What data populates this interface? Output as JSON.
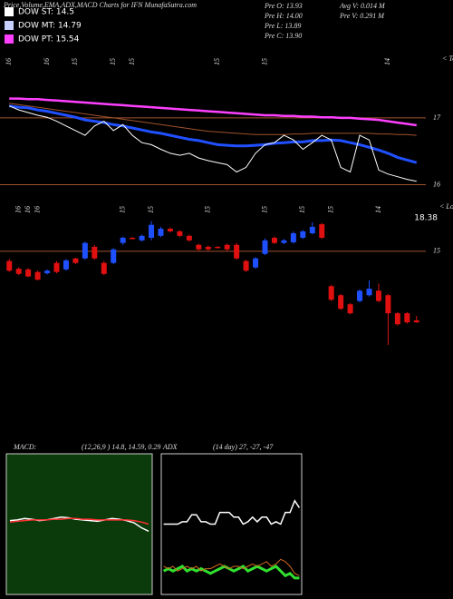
{
  "header": {
    "title": "Price,Volume,EMA,ADX,MACD Charts for IFN  MunafaSutra.com"
  },
  "legend": [
    {
      "label": "DOW ST: 14.5",
      "color": "#ffffff"
    },
    {
      "label": "DOW MT: 14.79",
      "color": "#c8d0ff"
    },
    {
      "label": "DOW PT: 15.54",
      "color": "#ff40ff"
    }
  ],
  "info": [
    "Pre  O: 13.93",
    "Pre  H: 14.00",
    "Pre  L: 13.89",
    "Pre  C: 13.90",
    "Avg V: 0.014  M",
    "Pre  V: 0.291  M"
  ],
  "chart_data": [
    {
      "type": "line",
      "categories": [
        "16",
        null,
        null,
        null,
        "16",
        null,
        null,
        "15",
        null,
        null,
        null,
        "15",
        null,
        "15",
        null,
        null,
        null,
        null,
        null,
        null,
        null,
        null,
        "15",
        null,
        null,
        null,
        null,
        "15",
        null,
        null,
        null,
        null,
        null,
        null,
        null,
        null,
        null,
        null,
        null,
        null,
        "14",
        null,
        null,
        null
      ],
      "series": [
        {
          "color": "#ff40ff",
          "width": 2.5,
          "values": [
            17.29,
            17.29,
            17.28,
            17.28,
            17.27,
            17.26,
            17.25,
            17.24,
            17.23,
            17.22,
            17.21,
            17.2,
            17.19,
            17.18,
            17.17,
            17.16,
            17.15,
            17.14,
            17.13,
            17.12,
            17.11,
            17.1,
            17.09,
            17.08,
            17.07,
            17.06,
            17.05,
            17.04,
            17.04,
            17.03,
            17.03,
            17.02,
            17.02,
            17.01,
            17.01,
            17.0,
            17.0,
            16.99,
            16.98,
            16.97,
            16.95,
            16.93,
            16.91,
            16.89
          ]
        },
        {
          "color": "#a0522d",
          "width": 1,
          "values": [
            17.22,
            17.2,
            17.18,
            17.16,
            17.14,
            17.12,
            17.1,
            17.08,
            17.06,
            17.04,
            17.02,
            17.0,
            16.98,
            16.96,
            16.94,
            16.92,
            16.9,
            16.88,
            16.86,
            16.84,
            16.82,
            16.8,
            16.79,
            16.78,
            16.77,
            16.76,
            16.75,
            16.75,
            16.75,
            16.75,
            16.76,
            16.76,
            16.77,
            16.77,
            16.77,
            16.77,
            16.77,
            16.77,
            16.77,
            16.76,
            16.76,
            16.75,
            16.75,
            16.74
          ]
        },
        {
          "color": "#2050ff",
          "width": 3,
          "values": [
            17.18,
            17.16,
            17.15,
            17.12,
            17.1,
            17.07,
            17.04,
            17.01,
            16.97,
            16.95,
            16.93,
            16.9,
            16.88,
            16.85,
            16.82,
            16.79,
            16.77,
            16.74,
            16.71,
            16.68,
            16.66,
            16.63,
            16.6,
            16.59,
            16.58,
            16.58,
            16.59,
            16.6,
            16.62,
            16.63,
            16.64,
            16.64,
            16.66,
            16.66,
            16.67,
            16.66,
            16.63,
            16.6,
            16.56,
            16.52,
            16.47,
            16.41,
            16.37,
            16.33
          ]
        },
        {
          "color": "#ffffff",
          "width": 1,
          "values": [
            17.18,
            17.12,
            17.08,
            17.04,
            17.01,
            16.95,
            16.88,
            16.81,
            16.74,
            16.88,
            16.95,
            16.81,
            16.9,
            16.74,
            16.63,
            16.6,
            16.53,
            16.47,
            16.44,
            16.47,
            16.4,
            16.36,
            16.33,
            16.3,
            16.19,
            16.26,
            16.47,
            16.6,
            16.63,
            16.74,
            16.67,
            16.53,
            16.63,
            16.74,
            16.67,
            16.26,
            16.19,
            16.74,
            16.67,
            16.22,
            16.16,
            16.12,
            16.08,
            16.05
          ]
        }
      ],
      "ylim": [
        15.98,
        17.95
      ],
      "yticks": [
        17,
        16
      ],
      "annotations": [
        "18.38",
        "< Topa"
      ]
    },
    {
      "type": "candlestick",
      "categories": [
        null,
        "16",
        "16",
        "16",
        null,
        null,
        null,
        null,
        null,
        null,
        null,
        null,
        "15",
        null,
        null,
        "15",
        null,
        null,
        null,
        null,
        null,
        "15",
        null,
        null,
        null,
        null,
        null,
        "15",
        null,
        null,
        null,
        "15",
        null,
        null,
        "15",
        null,
        null,
        null,
        null,
        "14",
        null,
        null,
        null,
        null
      ],
      "open": [
        14.85,
        14.73,
        14.72,
        14.68,
        14.66,
        14.82,
        14.72,
        14.89,
        14.89,
        15.07,
        14.82,
        14.82,
        15.13,
        15.21,
        15.17,
        15.21,
        15.24,
        15.35,
        15.31,
        15.24,
        15.1,
        15.07,
        15.07,
        15.1,
        15.1,
        14.85,
        14.75,
        14.96,
        15.21,
        15.13,
        15.14,
        15.21,
        15.28,
        15.42,
        14.46,
        14.32,
        14.18,
        14.23,
        14.32,
        14.39,
        14.32,
        14.04,
        14.04,
        13.93
      ],
      "high": [
        14.88,
        14.75,
        14.74,
        14.7,
        14.72,
        14.85,
        14.88,
        14.9,
        15.15,
        15.1,
        14.85,
        15.05,
        15.23,
        15.22,
        15.26,
        15.47,
        15.38,
        15.37,
        15.33,
        15.26,
        15.12,
        15.09,
        15.08,
        15.12,
        15.13,
        14.87,
        14.91,
        15.2,
        15.23,
        15.19,
        15.31,
        15.33,
        15.45,
        15.44,
        14.48,
        14.34,
        14.2,
        14.41,
        14.55,
        14.5,
        14.34,
        14.06,
        14.06,
        14.0
      ],
      "low": [
        14.68,
        14.63,
        14.6,
        14.55,
        14.64,
        14.66,
        14.7,
        14.8,
        14.87,
        14.87,
        14.63,
        14.8,
        15.1,
        15.19,
        15.15,
        15.17,
        15.22,
        15.29,
        15.22,
        15.15,
        15.01,
        15.01,
        15.05,
        15.01,
        14.87,
        14.68,
        14.73,
        14.94,
        15.11,
        15.11,
        15.12,
        15.19,
        15.26,
        15.19,
        14.23,
        14.09,
        14.02,
        14.21,
        14.3,
        14.21,
        13.55,
        13.85,
        13.88,
        13.89
      ],
      "close": [
        14.7,
        14.65,
        14.61,
        14.56,
        14.7,
        14.68,
        14.86,
        14.82,
        15.13,
        14.89,
        14.65,
        15.03,
        15.21,
        15.2,
        15.24,
        15.41,
        15.35,
        15.31,
        15.24,
        15.17,
        15.03,
        15.03,
        15.06,
        15.03,
        14.89,
        14.7,
        14.89,
        15.17,
        15.13,
        15.17,
        15.28,
        15.31,
        15.38,
        15.21,
        14.25,
        14.11,
        14.04,
        14.39,
        14.42,
        14.23,
        14.04,
        13.87,
        13.9,
        13.9
      ],
      "up_color": "#1e50ff",
      "down_color": "#e01010",
      "ylim": [
        13.48,
        15.73
      ],
      "yticks": [
        15
      ],
      "annotations": [
        "< Lowes"
      ]
    },
    {
      "type": "line",
      "title": "MACD:",
      "subtitle": "(12,26,9 ) 14.8, 14.59, 0.29",
      "background": "#0b3a0b",
      "series": [
        {
          "color": "#ffffff",
          "width": 1.5,
          "values": [
            0.05,
            0.06,
            0.08,
            0.07,
            0.05,
            0.06,
            0.08,
            0.1,
            0.09,
            0.07,
            0.06,
            0.05,
            0.04,
            0.06,
            0.08,
            0.07,
            0.05,
            0.02,
            -0.05,
            -0.1
          ]
        },
        {
          "color": "#ff3030",
          "width": 1.5,
          "values": [
            0.03,
            0.04,
            0.05,
            0.06,
            0.06,
            0.06,
            0.07,
            0.07,
            0.08,
            0.08,
            0.07,
            0.07,
            0.06,
            0.06,
            0.06,
            0.06,
            0.06,
            0.05,
            0.03,
            0.0
          ]
        }
      ],
      "ylim": [
        -1,
        1
      ]
    },
    {
      "type": "line",
      "title": "ADX",
      "subtitle": "(14 day) 27, -27, -47",
      "background": "#000000",
      "series": [
        {
          "color": "#ffffff",
          "width": 1.5,
          "values": [
            30,
            30,
            30,
            30,
            31,
            31,
            34,
            34,
            31,
            31,
            30,
            30,
            35,
            35,
            35,
            33,
            33,
            30,
            31,
            33,
            31,
            33,
            33,
            30,
            31,
            30,
            35,
            35,
            40,
            37
          ]
        },
        {
          "color": "#30e030",
          "width": 3,
          "values": [
            10,
            11,
            10,
            11,
            12,
            10,
            11,
            10,
            11,
            10,
            9,
            10,
            11,
            12,
            11,
            10,
            11,
            12,
            10,
            11,
            12,
            11,
            10,
            11,
            12,
            10,
            8,
            9,
            7,
            7
          ]
        },
        {
          "color": "#d2691e",
          "width": 1,
          "values": [
            12,
            11,
            12,
            10,
            11,
            12,
            11,
            12,
            10,
            11,
            11,
            12,
            13,
            12,
            11,
            12,
            12,
            11,
            12,
            13,
            12,
            13,
            14,
            12,
            13,
            15,
            14,
            12,
            9,
            8
          ]
        }
      ],
      "ylim": [
        0,
        60
      ]
    }
  ]
}
